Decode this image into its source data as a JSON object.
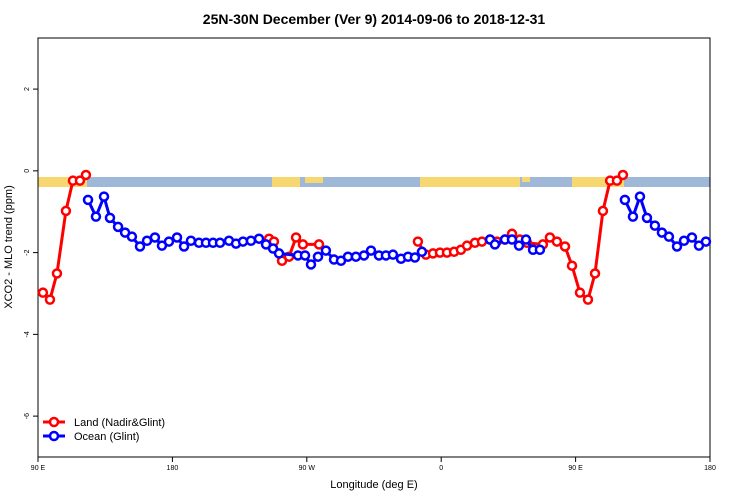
{
  "chart_data": {
    "type": "line",
    "title": "25N-30N December (Ver 9)   2014-09-06 to 2018-12-31",
    "x_label": "Longitude (deg E)",
    "y_label": "XCO2 - MLO trend (ppm)",
    "xlim": [
      90,
      540
    ],
    "xticks": [
      {
        "value": 90,
        "label": "90 E"
      },
      180,
      {
        "value": 270,
        "label": "90 W"
      },
      {
        "value": 360,
        "label": "0"
      },
      {
        "value": 450,
        "label": "90 E"
      },
      {
        "value": 540,
        "label": "180"
      }
    ],
    "ylim": [
      -7,
      3.25
    ],
    "yticks": [
      -6,
      -4,
      -2,
      0,
      2
    ],
    "legend": "bottom-left",
    "series": [
      {
        "name": "Land (Nadir&Glint)",
        "color": "#ff0000",
        "x": [
          93.3,
          98.0,
          102.7,
          108.7,
          113.4,
          118.1,
          122.1,
          null,
          244.7,
          248.0,
          253.4,
          258.1,
          262.8,
          267.4,
          278.2,
          null,
          344.4,
          349.8,
          354.5,
          359.2,
          363.9,
          368.6,
          373.2,
          377.3,
          382.6,
          387.3,
          392.7,
          397.3,
          402.7,
          407.4,
          412.7,
          417.4,
          428.1,
          432.8,
          437.5,
          442.9,
          447.6,
          452.9,
          458.3,
          463.0,
          468.3,
          473.1,
          477.7,
          481.7
        ],
        "values": [
          -2.98,
          -3.15,
          -2.51,
          -0.98,
          -0.24,
          -0.24,
          -0.1,
          null,
          -1.66,
          -1.73,
          -2.2,
          -2.1,
          -1.63,
          -1.8,
          -1.8,
          null,
          -1.73,
          -2.05,
          -2.02,
          -2.0,
          -2.0,
          -1.98,
          -1.93,
          -1.83,
          -1.76,
          -1.73,
          -1.68,
          -1.73,
          -1.68,
          -1.54,
          -1.68,
          -1.76,
          -1.8,
          -1.63,
          -1.73,
          -1.85,
          -2.32,
          -2.98,
          -3.15,
          -2.51,
          -0.98,
          -0.24,
          -0.24,
          -0.1
        ]
      },
      {
        "name": "Ocean (Glint)",
        "color": "#0000ff",
        "x": [
          123.5,
          128.8,
          134.2,
          138.2,
          143.6,
          148.3,
          152.9,
          158.3,
          163.0,
          168.3,
          173.0,
          177.7,
          183.1,
          187.8,
          192.4,
          197.8,
          202.5,
          207.2,
          211.9,
          217.9,
          222.6,
          227.3,
          232.6,
          238.0,
          242.7,
          247.4,
          251.4,
          264.1,
          268.8,
          272.8,
          277.5,
          282.8,
          288.2,
          292.9,
          297.6,
          302.9,
          308.3,
          313.0,
          318.3,
          323.0,
          327.7,
          333.1,
          337.8,
          342.4,
          347.1,
          null,
          392.7,
          396.0,
          402.7,
          407.4,
          412.1,
          416.8,
          421.5,
          426.1,
          null,
          483.0,
          488.4,
          493.1,
          497.8,
          503.1,
          507.8,
          512.5,
          517.9,
          522.6,
          527.9,
          532.6,
          537.3
        ],
        "values": [
          -0.71,
          -1.12,
          -0.63,
          -1.15,
          -1.37,
          -1.51,
          -1.61,
          -1.85,
          -1.71,
          -1.63,
          -1.83,
          -1.73,
          -1.63,
          -1.85,
          -1.71,
          -1.76,
          -1.76,
          -1.76,
          -1.76,
          -1.71,
          -1.78,
          -1.73,
          -1.71,
          -1.66,
          -1.8,
          -1.9,
          -2.02,
          -2.07,
          -2.07,
          -2.29,
          -2.1,
          -1.95,
          -2.17,
          -2.2,
          -2.1,
          -2.1,
          -2.07,
          -1.95,
          -2.07,
          -2.07,
          -2.05,
          -2.15,
          -2.1,
          -2.12,
          -1.98,
          null,
          -1.68,
          -1.8,
          -1.68,
          -1.68,
          -1.83,
          -1.68,
          -1.93,
          -1.93,
          null,
          -0.71,
          -1.12,
          -0.63,
          -1.15,
          -1.34,
          -1.51,
          -1.61,
          -1.85,
          -1.71,
          -1.63,
          -1.83,
          -1.73
        ]
      }
    ]
  }
}
